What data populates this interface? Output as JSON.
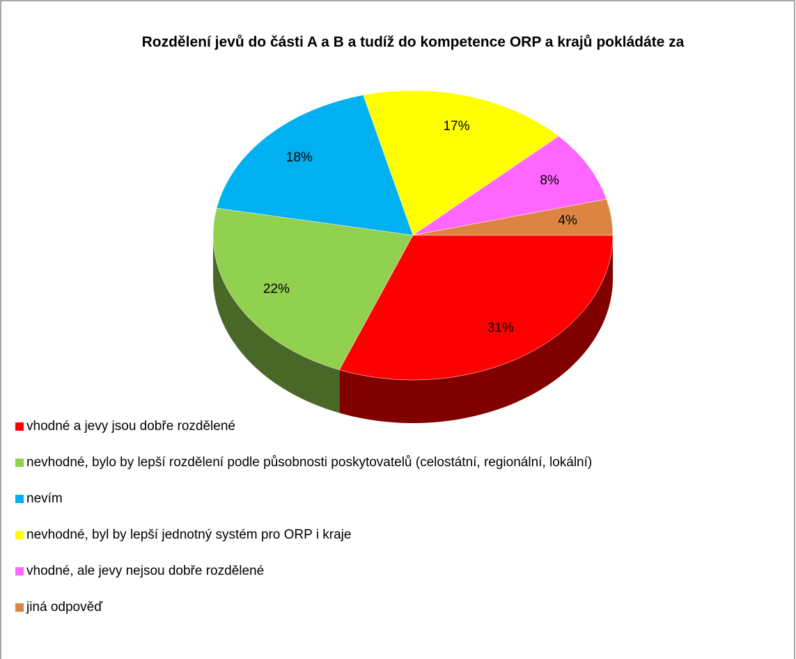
{
  "chart_data": {
    "type": "pie",
    "title": "Rozdělení jevů do části A a B a tudíž do kompetence ORP a krajů pokládáte za",
    "categories": [
      "vhodné a jevy jsou dobře rozdělené",
      "nevhodné, bylo by lepší rozdělení podle působnosti poskytovatelů (celostátní, regionální, lokální)",
      "nevím",
      "nevhodné, byl by lepší jednotný systém pro ORP i kraje",
      "vhodné, ale jevy nejsou dobře rozdělené",
      "jiná odpověď"
    ],
    "values": [
      31,
      22,
      18,
      17,
      8,
      4
    ],
    "value_labels": [
      "31%",
      "22%",
      "18%",
      "17%",
      "8%",
      "4%"
    ],
    "colors": [
      "#ff0000",
      "#92d050",
      "#00b0f0",
      "#ffff00",
      "#ff66ff",
      "#dd8442"
    ],
    "legend": "bottom"
  }
}
